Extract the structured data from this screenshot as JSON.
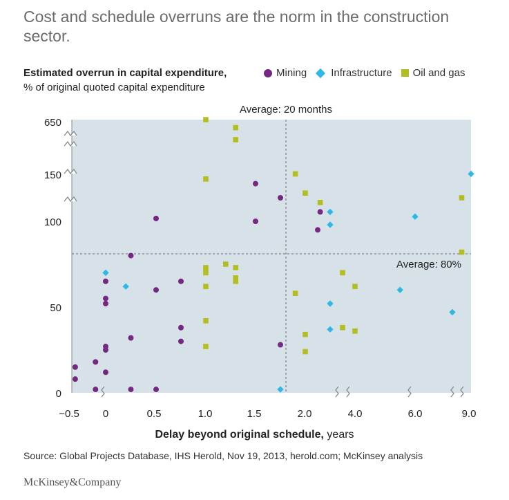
{
  "title": "Cost and schedule overruns are the norm in the construction sector.",
  "y_title": "Estimated overrun in capital expenditure,",
  "y_subtitle": "% of original quoted capital expenditure",
  "legend": [
    {
      "label": "Mining",
      "shape": "circle",
      "color": "#73297f"
    },
    {
      "label": "Infrastructure",
      "shape": "diamond",
      "color": "#2fb8e6"
    },
    {
      "label": "Oil and gas",
      "shape": "square",
      "color": "#b3be22"
    }
  ],
  "x_title_bold": "Delay beyond original schedule,",
  "x_title_unit": " years",
  "source": "Source: Global Projects Database, IHS Herold, Nov 19, 2013, herold.com; McKinsey analysis",
  "brand": "McKinsey&Company",
  "chart_data": {
    "type": "scatter",
    "title": "Cost and schedule overruns are the norm in the construction sector.",
    "xlabel": "Delay beyond original schedule, years",
    "ylabel": "Estimated overrun in capital expenditure, % of original quoted capital expenditure",
    "x_ticks": [
      "−0.5",
      "0",
      "0.5",
      "1.0",
      "1.5",
      "2.0",
      "4.0",
      "6.0",
      "9.0"
    ],
    "y_ticks": [
      "0",
      "50",
      "100",
      "150",
      "650"
    ],
    "axis_breaks": "broken scales: y between 100 and 150 and between 150 and 650; x between 2.0 and 4.0, 4.0 and 6.0, 6.0 and 9.0",
    "reference_lines": [
      {
        "axis": "x",
        "label": "Average: 20 months",
        "value_years": 1.67
      },
      {
        "axis": "y",
        "label": "Average: 80%",
        "value": 80
      }
    ],
    "series": [
      {
        "name": "Mining",
        "points": [
          [
            -0.45,
            8
          ],
          [
            -0.45,
            15
          ],
          [
            -0.15,
            18
          ],
          [
            -0.15,
            2
          ],
          [
            0,
            12
          ],
          [
            0,
            25
          ],
          [
            0,
            27
          ],
          [
            0,
            52
          ],
          [
            0,
            55
          ],
          [
            0,
            65
          ],
          [
            0.25,
            32
          ],
          [
            0.25,
            80
          ],
          [
            0.25,
            2
          ],
          [
            0.5,
            60
          ],
          [
            0.5,
            103
          ],
          [
            0.5,
            2
          ],
          [
            0.75,
            30
          ],
          [
            0.75,
            38
          ],
          [
            0.75,
            65
          ],
          [
            1.5,
            100
          ],
          [
            1.5,
            140
          ],
          [
            1.75,
            28
          ],
          [
            1.75,
            125
          ],
          [
            2.6,
            110
          ],
          [
            2.5,
            95
          ]
        ]
      },
      {
        "name": "Infrastructure",
        "points": [
          [
            0,
            70
          ],
          [
            0.2,
            62
          ],
          [
            1.75,
            2
          ],
          [
            3.0,
            37
          ],
          [
            3.0,
            52
          ],
          [
            3.0,
            110
          ],
          [
            3.0,
            98
          ],
          [
            5.5,
            60
          ],
          [
            6.0,
            105
          ],
          [
            8.0,
            47
          ],
          [
            9.0,
            155
          ]
        ]
      },
      {
        "name": "Oil and gas",
        "points": [
          [
            1.0,
            650
          ],
          [
            1.0,
            145
          ],
          [
            1.0,
            73
          ],
          [
            1.0,
            70
          ],
          [
            1.0,
            62
          ],
          [
            1.0,
            42
          ],
          [
            1.0,
            27
          ],
          [
            1.2,
            75
          ],
          [
            1.3,
            630
          ],
          [
            1.3,
            600
          ],
          [
            1.3,
            73
          ],
          [
            1.3,
            67
          ],
          [
            1.3,
            65
          ],
          [
            1.9,
            155
          ],
          [
            1.9,
            58
          ],
          [
            2.0,
            130
          ],
          [
            2.0,
            34
          ],
          [
            2.0,
            24
          ],
          [
            2.6,
            120
          ],
          [
            3.5,
            70
          ],
          [
            3.5,
            38
          ],
          [
            4.0,
            62
          ],
          [
            4.0,
            36
          ],
          [
            8.5,
            125
          ],
          [
            8.5,
            82
          ]
        ]
      }
    ]
  }
}
